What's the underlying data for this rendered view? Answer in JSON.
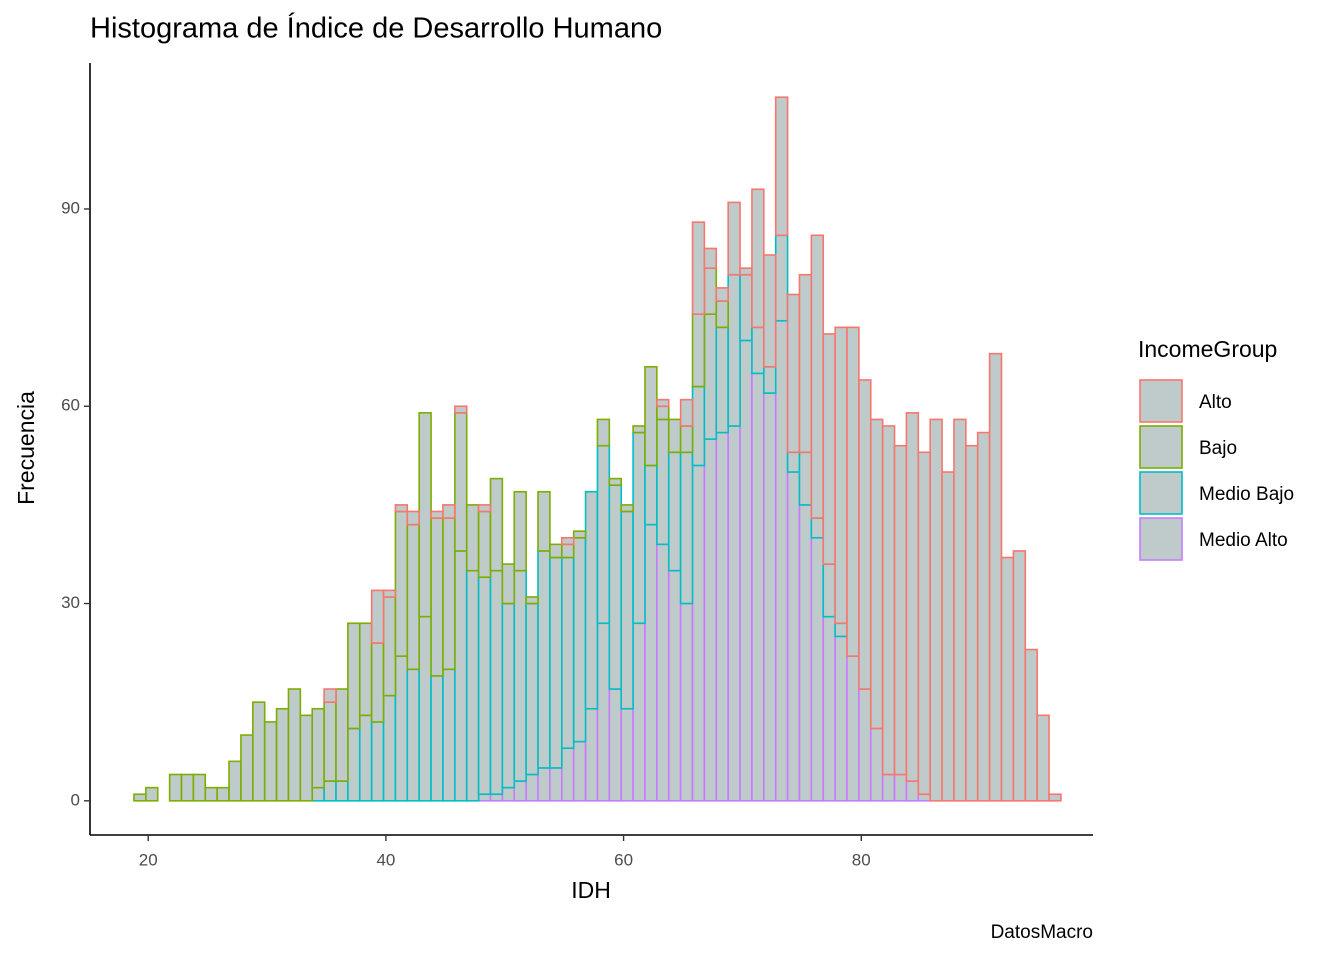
{
  "chart_data": {
    "type": "histogram",
    "title": "Histograma de Índice de Desarrollo Humano",
    "x_label": "IDH",
    "y_label": "Frecuencia",
    "caption": "DatosMacro",
    "legend_title": "IncomeGroup",
    "legend_position": "right",
    "stacked": true,
    "bar_fill": "#bfcaca",
    "bins": [
      18.8,
      19.8,
      20.8,
      21.8,
      22.8,
      23.8,
      24.8,
      25.8,
      26.8,
      27.8,
      28.8,
      29.8,
      30.8,
      31.8,
      32.8,
      33.8,
      34.8,
      35.8,
      36.8,
      37.8,
      38.8,
      39.8,
      40.8,
      41.8,
      42.8,
      43.8,
      44.8,
      45.8,
      46.8,
      47.8,
      48.8,
      49.8,
      50.8,
      51.8,
      52.8,
      53.8,
      54.8,
      55.8,
      56.8,
      57.8,
      58.8,
      59.8,
      60.8,
      61.8,
      62.8,
      63.8,
      64.8,
      65.8,
      66.8,
      67.8,
      68.8,
      69.8,
      70.8,
      71.8,
      72.8,
      73.8,
      74.8,
      75.8,
      76.8,
      77.8,
      78.8,
      79.8,
      80.8,
      81.8,
      82.8,
      83.8,
      84.8,
      85.8,
      86.8,
      87.8,
      88.8,
      89.8,
      90.8,
      91.8,
      92.8,
      93.8,
      94.8,
      95.8,
      96.8
    ],
    "series": [
      {
        "name": "Alto",
        "color": "#F8766D",
        "values": [
          0,
          0,
          0,
          0,
          0,
          0,
          0,
          0,
          0,
          0,
          0,
          0,
          0,
          0,
          0,
          0,
          2,
          0,
          0,
          0,
          8,
          1,
          1,
          2,
          0,
          1,
          2,
          1,
          0,
          1,
          0,
          0,
          0,
          0,
          0,
          0,
          1,
          0,
          0,
          0,
          0,
          0,
          0,
          0,
          1,
          0,
          4,
          14,
          3,
          2,
          11,
          1,
          21,
          17,
          21,
          24,
          27,
          43,
          35,
          45,
          50,
          47,
          47,
          53,
          50,
          56,
          52,
          58,
          50,
          58,
          54,
          56,
          68,
          37,
          38,
          23,
          13,
          1
        ]
      },
      {
        "name": "Bajo",
        "color": "#7CAE00",
        "values": [
          1,
          2,
          0,
          4,
          4,
          4,
          2,
          2,
          6,
          10,
          15,
          12,
          14,
          17,
          13,
          12,
          12,
          14,
          16,
          14,
          12,
          15,
          22,
          22,
          31,
          24,
          23,
          21,
          10,
          10,
          14,
          6,
          12,
          1,
          9,
          2,
          2,
          1,
          0,
          4,
          1,
          1,
          1,
          15,
          2,
          5,
          4,
          11,
          7,
          4,
          0,
          0,
          0,
          0,
          0,
          0,
          0,
          0,
          0,
          0,
          0,
          0,
          0,
          0,
          0,
          0,
          0,
          0,
          0,
          0,
          0,
          0,
          0,
          0,
          0,
          0,
          0,
          0
        ]
      },
      {
        "name": "Medio Bajo",
        "color": "#00BFC4",
        "values": [
          0,
          0,
          0,
          0,
          0,
          0,
          0,
          0,
          0,
          0,
          0,
          0,
          0,
          0,
          0,
          2,
          3,
          3,
          11,
          13,
          12,
          16,
          22,
          20,
          28,
          19,
          20,
          38,
          35,
          33,
          34,
          28,
          32,
          26,
          33,
          32,
          29,
          31,
          33,
          27,
          31,
          30,
          29,
          9,
          19,
          18,
          23,
          12,
          19,
          16,
          23,
          10,
          7,
          4,
          13,
          3,
          8,
          3,
          8,
          2,
          0,
          0,
          0,
          0,
          0,
          0,
          0,
          0,
          0,
          0,
          0,
          0,
          0,
          0,
          0,
          0,
          0,
          0
        ]
      },
      {
        "name": "Medio Alto",
        "color": "#C77CFF",
        "values": [
          0,
          0,
          0,
          0,
          0,
          0,
          0,
          0,
          0,
          0,
          0,
          0,
          0,
          0,
          0,
          0,
          0,
          0,
          0,
          0,
          0,
          0,
          0,
          0,
          0,
          0,
          0,
          0,
          0,
          1,
          1,
          2,
          3,
          4,
          5,
          5,
          8,
          9,
          14,
          27,
          17,
          14,
          27,
          42,
          39,
          35,
          30,
          51,
          55,
          56,
          57,
          70,
          65,
          62,
          73,
          50,
          45,
          40,
          28,
          25,
          22,
          17,
          11,
          4,
          4,
          3,
          1,
          0,
          0,
          0,
          0,
          0,
          0,
          0,
          0,
          0,
          0,
          0
        ]
      }
    ],
    "xlim": [
      15.1,
      99.5
    ],
    "ylim": [
      -5.2,
      112.2
    ],
    "xticks": [
      20,
      40,
      60,
      80
    ],
    "yticks": [
      0,
      30,
      60,
      90
    ]
  }
}
